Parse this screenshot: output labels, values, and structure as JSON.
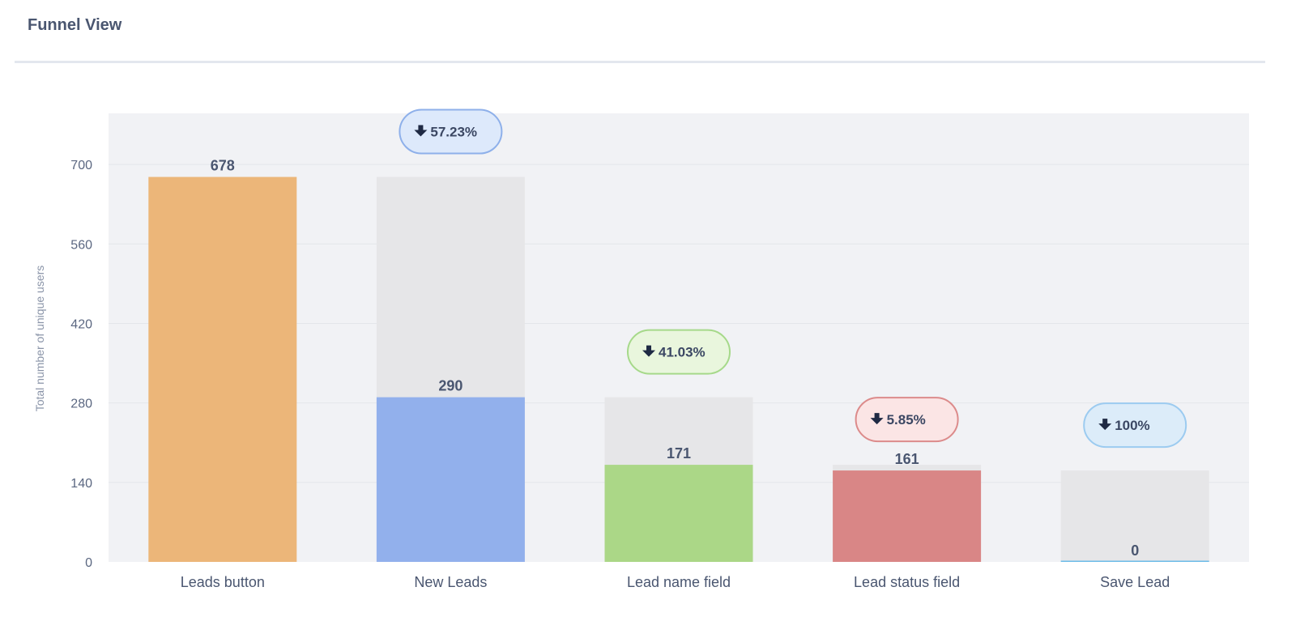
{
  "panel": {
    "title": "Funnel View"
  },
  "chart_data": {
    "type": "bar",
    "title": "",
    "ylabel": "Total number of unique users",
    "xlabel": "",
    "ylim": [
      0,
      790
    ],
    "yticks": [
      0,
      140,
      280,
      420,
      560,
      700
    ],
    "categories": [
      "Leads button",
      "New Leads",
      "Lead name field",
      "Lead status field",
      "Save Lead"
    ],
    "values": [
      678,
      290,
      171,
      161,
      0
    ],
    "previous_step_values": [
      null,
      678,
      290,
      171,
      161
    ],
    "dropoff": [
      null,
      "57.23%",
      "41.03%",
      "5.85%",
      "100%"
    ],
    "bar_colors": [
      "#ecb679",
      "#92b0ec",
      "#abd787",
      "#d98686",
      "#6bbbe8"
    ],
    "badge_colors": [
      null,
      {
        "fill": "#dde9fb",
        "stroke": "#8eb0ea"
      },
      {
        "fill": "#e9f6dd",
        "stroke": "#a6d98a"
      },
      {
        "fill": "#fbe5e5",
        "stroke": "#dc8b8b"
      },
      {
        "fill": "#dcecf9",
        "stroke": "#9ccbf0"
      }
    ],
    "dropoff_icon": "arrow-down-icon",
    "grid": true,
    "plot_background": "#f1f2f5",
    "ghost_bar_color": "#e6e6e8"
  }
}
